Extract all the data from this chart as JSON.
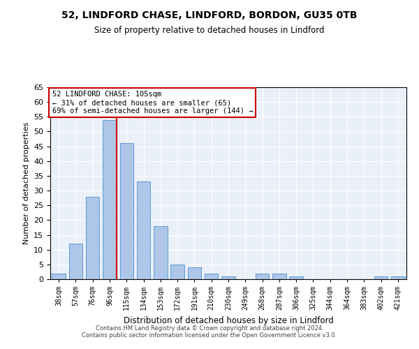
{
  "title_line1": "52, LINDFORD CHASE, LINDFORD, BORDON, GU35 0TB",
  "title_line2": "Size of property relative to detached houses in Lindford",
  "xlabel": "Distribution of detached houses by size in Lindford",
  "ylabel": "Number of detached properties",
  "categories": [
    "38sqm",
    "57sqm",
    "76sqm",
    "96sqm",
    "115sqm",
    "134sqm",
    "153sqm",
    "172sqm",
    "191sqm",
    "210sqm",
    "230sqm",
    "249sqm",
    "268sqm",
    "287sqm",
    "306sqm",
    "325sqm",
    "344sqm",
    "364sqm",
    "383sqm",
    "402sqm",
    "421sqm"
  ],
  "values": [
    2,
    12,
    28,
    54,
    46,
    33,
    18,
    5,
    4,
    2,
    1,
    0,
    2,
    2,
    1,
    0,
    0,
    0,
    0,
    1,
    1
  ],
  "bar_color": "#aec6e8",
  "bar_edge_color": "#5b9bd5",
  "vline_color": "#cc0000",
  "vline_x": 3.4,
  "annotation_title": "52 LINDFORD CHASE: 105sqm",
  "annotation_line2": "← 31% of detached houses are smaller (65)",
  "annotation_line3": "69% of semi-detached houses are larger (144) →",
  "annotation_box_color": "#ffffff",
  "annotation_box_edge": "#cc0000",
  "ylim": [
    0,
    65
  ],
  "yticks": [
    0,
    5,
    10,
    15,
    20,
    25,
    30,
    35,
    40,
    45,
    50,
    55,
    60,
    65
  ],
  "footer_line1": "Contains HM Land Registry data © Crown copyright and database right 2024.",
  "footer_line2": "Contains public sector information licensed under the Open Government Licence v3.0.",
  "bg_color": "#eaf0f8",
  "fig_width": 6.0,
  "fig_height": 5.0,
  "dpi": 100
}
